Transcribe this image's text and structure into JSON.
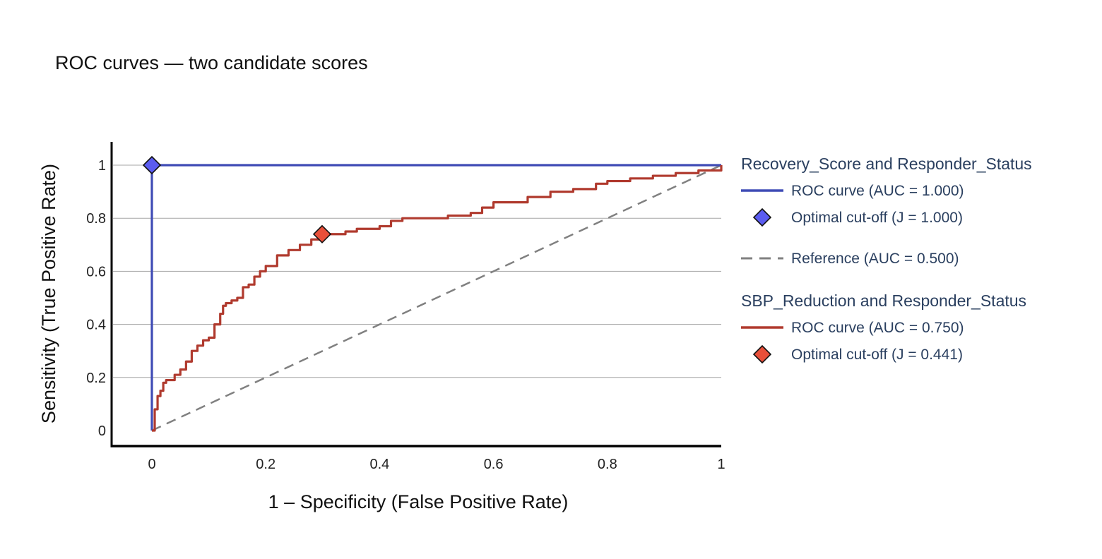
{
  "title": "ROC curves — two candidate scores",
  "chart_data": {
    "type": "line",
    "xlabel": "1 – Specificity (False Positive Rate)",
    "ylabel": "Sensitivity (True Positive Rate)",
    "xlim": [
      -0.07,
      1.0
    ],
    "ylim": [
      -0.06,
      1.09
    ],
    "xticks": [
      0,
      0.2,
      0.4,
      0.6,
      0.8,
      1
    ],
    "xtick_labels": [
      "0",
      "0.2",
      "0.4",
      "0.6",
      "0.8",
      "1"
    ],
    "yticks": [
      0,
      0.2,
      0.4,
      0.6,
      0.8,
      1
    ],
    "ytick_labels": [
      "0",
      "0.2",
      "0.4",
      "0.6",
      "0.8",
      "1"
    ],
    "grid": "horizontal",
    "legend_position": "right",
    "legend_groups": [
      {
        "title": "Recovery_Score and Responder_Status",
        "items": [
          {
            "label": "ROC curve (AUC = 1.000)",
            "kind": "line",
            "color": "#3f4bb5"
          },
          {
            "label": "Optimal cut-off (J = 1.000)",
            "kind": "marker",
            "color": "#5b5cf0"
          }
        ]
      },
      {
        "title": "",
        "items": [
          {
            "label": "Reference (AUC = 0.500)",
            "kind": "dash",
            "color": "#808080"
          }
        ]
      },
      {
        "title": "SBP_Reduction and Responder_Status",
        "items": [
          {
            "label": "ROC curve (AUC = 0.750)",
            "kind": "line",
            "color": "#b03a2e"
          },
          {
            "label": "Optimal cut-off (J = 0.441)",
            "kind": "marker",
            "color": "#e8503a"
          }
        ]
      }
    ],
    "series": [
      {
        "color": "#3f4bb5",
        "style": "solid",
        "x": [
          0,
          0,
          1
        ],
        "y": [
          0,
          1,
          1
        ]
      },
      {
        "color": "#808080",
        "style": "dash",
        "x": [
          0,
          1
        ],
        "y": [
          0,
          1
        ]
      },
      {
        "color": "#b03a2e",
        "style": "solid",
        "x": [
          0,
          0.005,
          0.01,
          0.015,
          0.02,
          0.025,
          0.03,
          0.04,
          0.05,
          0.06,
          0.07,
          0.08,
          0.09,
          0.1,
          0.11,
          0.12,
          0.125,
          0.13,
          0.14,
          0.15,
          0.16,
          0.17,
          0.18,
          0.19,
          0.2,
          0.22,
          0.24,
          0.26,
          0.28,
          0.3,
          0.32,
          0.34,
          0.36,
          0.4,
          0.42,
          0.44,
          0.48,
          0.52,
          0.56,
          0.58,
          0.6,
          0.62,
          0.66,
          0.7,
          0.74,
          0.78,
          0.8,
          0.84,
          0.88,
          0.92,
          0.96,
          1.0
        ],
        "y": [
          0,
          0.08,
          0.13,
          0.15,
          0.18,
          0.19,
          0.19,
          0.21,
          0.23,
          0.26,
          0.3,
          0.32,
          0.34,
          0.35,
          0.4,
          0.44,
          0.47,
          0.48,
          0.49,
          0.5,
          0.54,
          0.55,
          0.58,
          0.6,
          0.62,
          0.66,
          0.68,
          0.7,
          0.72,
          0.74,
          0.74,
          0.75,
          0.76,
          0.77,
          0.79,
          0.8,
          0.8,
          0.81,
          0.82,
          0.84,
          0.86,
          0.86,
          0.88,
          0.9,
          0.91,
          0.93,
          0.94,
          0.95,
          0.96,
          0.97,
          0.98,
          1.0
        ]
      }
    ],
    "markers": [
      {
        "x": 0,
        "y": 1,
        "color": "#5b5cf0",
        "label": "Optimal cut-off (J = 1.000)"
      },
      {
        "x": 0.299,
        "y": 0.74,
        "color": "#e8503a",
        "label": "Optimal cut-off (J = 0.441)"
      }
    ]
  }
}
